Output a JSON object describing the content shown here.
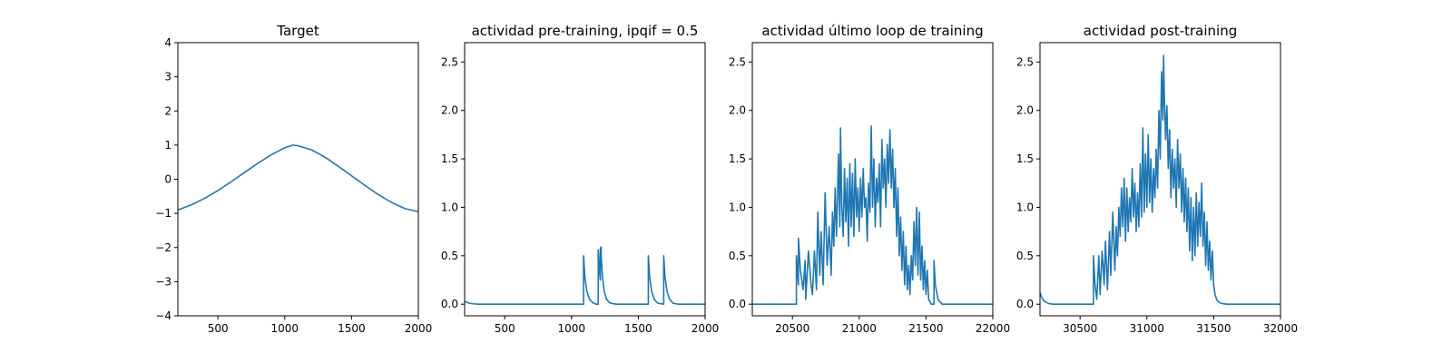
{
  "chart_data": [
    {
      "type": "line",
      "title": "Target",
      "xlabel": "",
      "ylabel": "",
      "xlim": [
        200,
        2000
      ],
      "ylim": [
        -4,
        4
      ],
      "xticks": [
        500,
        1000,
        1500,
        2000
      ],
      "yticks": [
        -4,
        -3,
        -2,
        -1,
        0,
        1,
        2,
        3,
        4
      ],
      "grid": false,
      "color": "#1f77b4",
      "series": [
        {
          "x": [
            200,
            300,
            400,
            500,
            600,
            700,
            800,
            900,
            1000,
            1060,
            1100,
            1200,
            1300,
            1400,
            1500,
            1600,
            1700,
            1800,
            1900,
            2000
          ],
          "y": [
            -0.9,
            -0.75,
            -0.56,
            -0.33,
            -0.07,
            0.2,
            0.47,
            0.72,
            0.92,
            1.0,
            0.98,
            0.86,
            0.65,
            0.38,
            0.1,
            -0.18,
            -0.45,
            -0.68,
            -0.86,
            -0.95
          ]
        }
      ]
    },
    {
      "type": "line",
      "title": "actividad pre-training, ipqif = 0.5",
      "xlabel": "",
      "ylabel": "",
      "xlim": [
        200,
        2000
      ],
      "ylim": [
        -0.12,
        2.7
      ],
      "xticks": [
        500,
        1000,
        1500,
        2000
      ],
      "yticks": [
        0.0,
        0.5,
        1.0,
        1.5,
        2.0,
        2.5
      ],
      "ytick_labels": [
        "0.0",
        "0.5",
        "1.0",
        "1.5",
        "2.0",
        "2.5"
      ],
      "grid": false,
      "color": "#1f77b4",
      "series": [
        {
          "x": [
            200,
            215,
            235,
            260,
            300,
            1090,
            1090,
            1100,
            1115,
            1135,
            1160,
            1185,
            1200,
            1200,
            1212,
            1216,
            1216,
            1222,
            1222,
            1232,
            1245,
            1262,
            1285,
            1310,
            1340,
            1575,
            1575,
            1585,
            1600,
            1620,
            1645,
            1690,
            1690,
            1700,
            1715,
            1735,
            1760,
            1800,
            2000
          ],
          "y": [
            0.03,
            0.02,
            0.01,
            0.005,
            0.0,
            0.0,
            0.5,
            0.28,
            0.13,
            0.05,
            0.015,
            0.0,
            0.0,
            0.56,
            0.3,
            0.25,
            0.58,
            0.59,
            0.5,
            0.28,
            0.13,
            0.05,
            0.015,
            0.005,
            0.0,
            0.0,
            0.5,
            0.28,
            0.13,
            0.05,
            0.01,
            0.0,
            0.5,
            0.28,
            0.13,
            0.05,
            0.01,
            0.0,
            0.0
          ]
        }
      ]
    },
    {
      "type": "line",
      "title": "actividad último loop de training",
      "xlabel": "",
      "ylabel": "",
      "xlim": [
        20200,
        22000
      ],
      "ylim": [
        -0.12,
        2.7
      ],
      "xticks": [
        20500,
        21000,
        21500,
        22000
      ],
      "yticks": [
        0.0,
        0.5,
        1.0,
        1.5,
        2.0,
        2.5
      ],
      "ytick_labels": [
        "0.0",
        "0.5",
        "1.0",
        "1.5",
        "2.0",
        "2.5"
      ],
      "grid": false,
      "color": "#1f77b4",
      "series": [
        {
          "x": [
            20200,
            20530,
            20530,
            20545,
            20545,
            20560,
            20580,
            20595,
            20600,
            20620,
            20640,
            20650,
            20665,
            20680,
            20690,
            20705,
            20715,
            20730,
            20745,
            20760,
            20775,
            20790,
            20800,
            20810,
            20820,
            20830,
            20845,
            20855,
            20860,
            20870,
            20880,
            20890,
            20900,
            20910,
            20920,
            20930,
            20940,
            20950,
            20960,
            20970,
            20980,
            20990,
            21000,
            21010,
            21020,
            21030,
            21040,
            21050,
            21060,
            21070,
            21080,
            21090,
            21100,
            21110,
            21120,
            21130,
            21140,
            21150,
            21160,
            21170,
            21180,
            21190,
            21200,
            21210,
            21220,
            21230,
            21240,
            21250,
            21260,
            21270,
            21280,
            21290,
            21300,
            21310,
            21320,
            21330,
            21340,
            21350,
            21360,
            21370,
            21380,
            21390,
            21400,
            21410,
            21420,
            21430,
            21440,
            21450,
            21460,
            21470,
            21480,
            21490,
            21500,
            21510,
            21520,
            21540,
            21560,
            21560,
            21570,
            21590,
            21620,
            22000
          ],
          "y": [
            0.0,
            0.0,
            0.5,
            0.2,
            0.68,
            0.35,
            0.15,
            0.45,
            0.05,
            0.55,
            0.2,
            0.1,
            0.55,
            0.15,
            0.95,
            0.3,
            0.75,
            0.2,
            1.15,
            0.4,
            0.8,
            0.3,
            0.95,
            0.6,
            1.2,
            0.7,
            1.55,
            0.8,
            1.82,
            1.0,
            0.7,
            1.4,
            0.85,
            1.3,
            0.6,
            1.45,
            0.8,
            1.35,
            0.7,
            1.5,
            0.9,
            1.2,
            0.75,
            1.3,
            0.9,
            1.4,
            1.0,
            1.1,
            0.65,
            1.25,
            0.95,
            1.84,
            1.0,
            1.5,
            0.8,
            1.3,
            1.05,
            1.45,
            0.8,
            1.7,
            1.2,
            1.5,
            1.0,
            1.65,
            1.25,
            1.8,
            1.2,
            1.6,
            1.0,
            1.4,
            0.7,
            1.2,
            0.5,
            0.9,
            0.35,
            0.75,
            0.2,
            0.6,
            0.15,
            0.4,
            0.1,
            0.5,
            0.25,
            0.85,
            0.4,
            1.0,
            0.3,
            0.95,
            0.25,
            0.6,
            0.15,
            0.45,
            0.1,
            0.35,
            0.05,
            0.0,
            0.0,
            0.45,
            0.2,
            0.05,
            0.0,
            0.0
          ]
        }
      ]
    },
    {
      "type": "line",
      "title": "actividad post-training",
      "xlabel": "",
      "ylabel": "",
      "xlim": [
        30200,
        32000
      ],
      "ylim": [
        -0.12,
        2.7
      ],
      "xticks": [
        30500,
        31000,
        31500,
        32000
      ],
      "yticks": [
        0.0,
        0.5,
        1.0,
        1.5,
        2.0,
        2.5
      ],
      "ytick_labels": [
        "0.0",
        "0.5",
        "1.0",
        "1.5",
        "2.0",
        "2.5"
      ],
      "grid": false,
      "color": "#1f77b4",
      "series": [
        {
          "x": [
            30200,
            30210,
            30225,
            30245,
            30270,
            30300,
            30600,
            30600,
            30612,
            30625,
            30640,
            30650,
            30665,
            30680,
            30690,
            30705,
            30720,
            30730,
            30745,
            30760,
            30770,
            30780,
            30790,
            30800,
            30810,
            30820,
            30830,
            30840,
            30850,
            30860,
            30870,
            30880,
            30890,
            30900,
            30910,
            30920,
            30930,
            30940,
            30950,
            30960,
            30970,
            30980,
            30990,
            31000,
            31010,
            31020,
            31030,
            31040,
            31050,
            31060,
            31070,
            31080,
            31090,
            31100,
            31110,
            31120,
            31125,
            31130,
            31140,
            31150,
            31160,
            31170,
            31180,
            31190,
            31200,
            31210,
            31220,
            31230,
            31240,
            31250,
            31260,
            31270,
            31280,
            31290,
            31300,
            31310,
            31320,
            31330,
            31340,
            31350,
            31360,
            31370,
            31380,
            31390,
            31400,
            31410,
            31420,
            31430,
            31440,
            31450,
            31460,
            31470,
            31480,
            31490,
            31500,
            31510,
            31525,
            31545,
            31570,
            31600,
            32000
          ],
          "y": [
            0.12,
            0.08,
            0.04,
            0.02,
            0.005,
            0.0,
            0.0,
            0.5,
            0.2,
            0.05,
            0.5,
            0.1,
            0.55,
            0.2,
            0.65,
            0.15,
            0.75,
            0.3,
            0.95,
            0.35,
            0.8,
            0.5,
            1.0,
            0.7,
            1.2,
            0.8,
            1.3,
            0.65,
            1.2,
            0.75,
            1.1,
            0.85,
            1.4,
            0.9,
            1.25,
            0.75,
            1.15,
            0.8,
            1.45,
            0.9,
            1.82,
            0.95,
            1.55,
            1.0,
            1.75,
            1.05,
            1.5,
            0.95,
            1.4,
            1.1,
            1.6,
            1.2,
            2.0,
            1.5,
            2.4,
            1.9,
            2.57,
            2.2,
            1.7,
            2.05,
            1.4,
            1.8,
            1.1,
            1.6,
            1.2,
            1.5,
            1.0,
            1.7,
            1.2,
            1.55,
            0.95,
            1.4,
            0.85,
            1.3,
            0.75,
            1.2,
            0.55,
            1.1,
            0.45,
            1.0,
            0.5,
            1.15,
            0.6,
            1.05,
            0.7,
            1.25,
            0.6,
            0.95,
            0.4,
            0.85,
            0.35,
            0.65,
            0.25,
            0.55,
            0.2,
            0.1,
            0.04,
            0.015,
            0.005,
            0.0,
            0.0
          ]
        }
      ]
    }
  ]
}
